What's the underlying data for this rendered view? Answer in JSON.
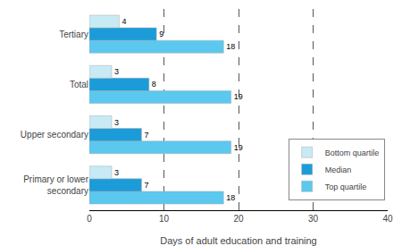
{
  "chart_data": {
    "type": "bar",
    "orientation": "horizontal",
    "categories": [
      "Primary or lower\nsecondary",
      "Upper secondary",
      "Total",
      "Tertiary"
    ],
    "series": [
      {
        "name": "Bottom quartile",
        "color": "#c8eaf5",
        "values": [
          3,
          3,
          3,
          4
        ]
      },
      {
        "name": "Median",
        "color": "#1b9cd8",
        "values": [
          7,
          7,
          8,
          9
        ]
      },
      {
        "name": "Top quartile",
        "color": "#5bc8f0",
        "values": [
          18,
          19,
          19,
          18
        ]
      }
    ],
    "xlabel": "Days of adult education and training",
    "xlim": [
      0,
      40
    ],
    "xticks": [
      0,
      10,
      20,
      30,
      40
    ],
    "grid": true,
    "data_labels": true,
    "legend": "lower right"
  }
}
